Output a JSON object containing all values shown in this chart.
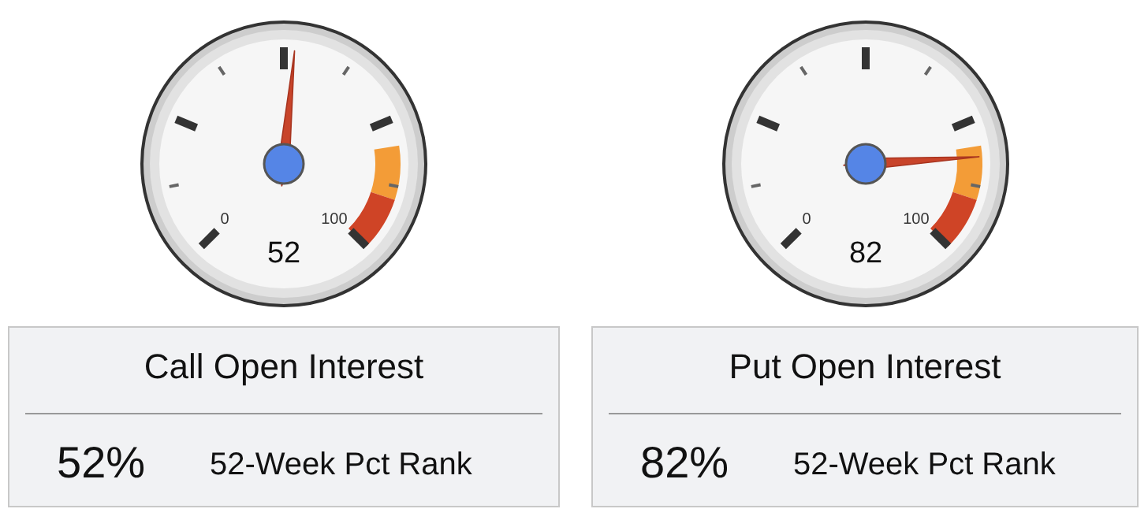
{
  "chart_data": [
    {
      "type": "other",
      "title": "Call Open Interest",
      "values": [
        52
      ],
      "value_labels": [
        "52%"
      ],
      "annotations": [
        "0",
        "100",
        "52",
        "52-Week Pct Rank"
      ]
    },
    {
      "type": "other",
      "title": "Put Open Interest",
      "values": [
        82
      ],
      "value_labels": [
        "82%"
      ],
      "annotations": [
        "0",
        "100",
        "82",
        "52-Week Pct Rank"
      ]
    }
  ]
}
